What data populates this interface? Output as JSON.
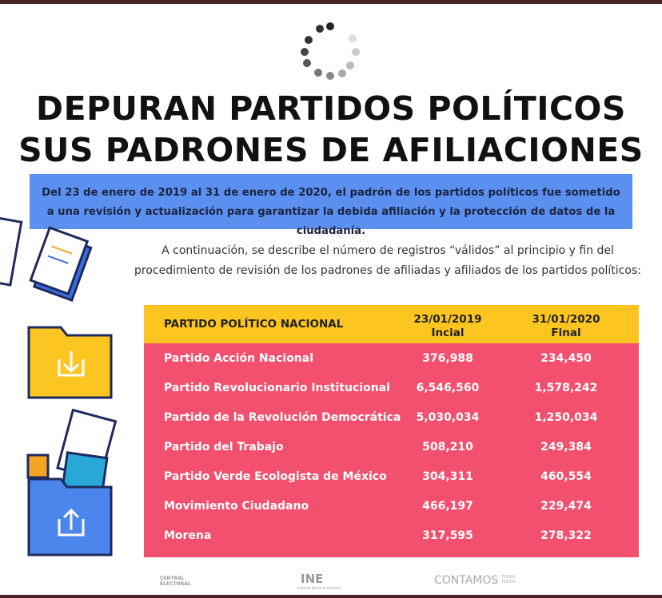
{
  "header": {
    "title_lines": [
      "DEPURAN PARTIDOS POLÍTICOS",
      "SUS  PADRONES DE AFILIACIONES"
    ]
  },
  "intro": "Del 23 de enero de 2019 al 31 de enero de 2020, el padrón de los partidos políticos fue sometido a una revisión y actualización para garantizar la debida afiliación y la protección de datos de la ciudadanía.",
  "description": "A continuación, se describe el número de registros “válidos” al principio y fin del procedimiento de revisión de los padrones de afiliadas y afiliados de los partidos políticos:",
  "table": {
    "columns": [
      {
        "title": "PARTIDO POLÍTICO NACIONAL"
      },
      {
        "title": "23/01/2019",
        "subtitle": "Incial"
      },
      {
        "title": "31/01/2020",
        "subtitle": "Final"
      }
    ],
    "rows": [
      [
        "Partido Acción Nacional",
        "376,988",
        "234,450"
      ],
      [
        "Partido Revolucionario Institucional",
        "6,546,560",
        "1,578,242"
      ],
      [
        "Partido de la Revolución Democrática",
        "5,030,034",
        "1,250,034"
      ],
      [
        "Partido del Trabajo",
        "508,210",
        "249,384"
      ],
      [
        "Partido Verde Ecologista de México",
        "304,311",
        "460,554"
      ],
      [
        "Movimiento Ciudadano",
        "466,197",
        "229,474"
      ],
      [
        "Morena",
        "317,595",
        "278,322"
      ]
    ]
  },
  "footer": {
    "logos": [
      "CENTRAL ELECTORAL",
      "INE",
      "Instituto Nacional Electoral",
      "CONTAMOS",
      "TODAS TODOS"
    ]
  }
}
